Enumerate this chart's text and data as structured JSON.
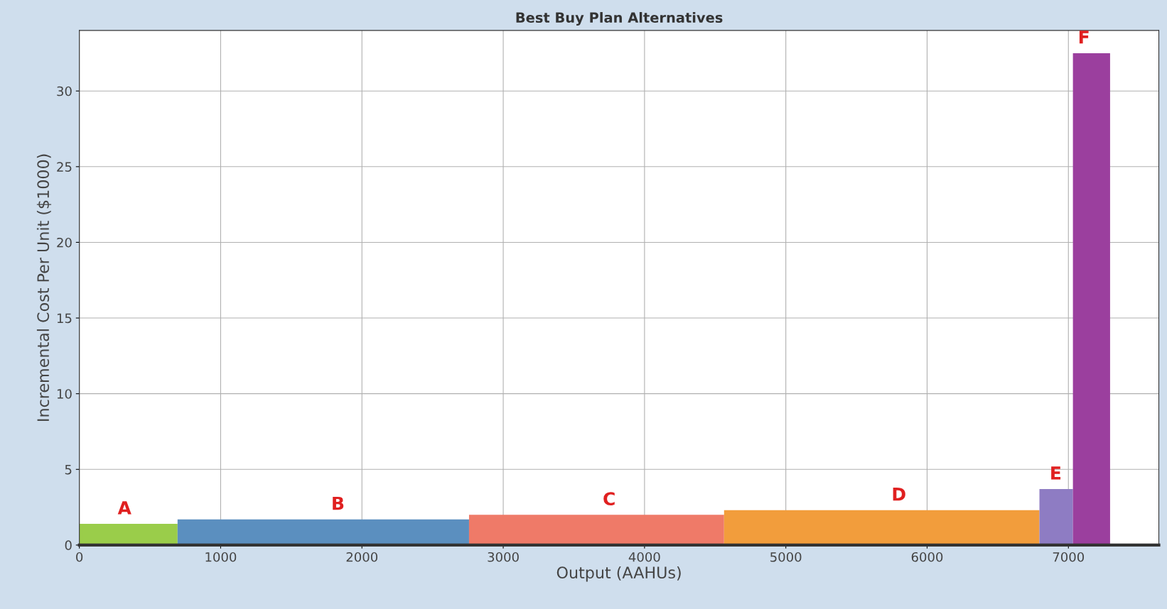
{
  "chart_data": {
    "type": "area",
    "title": "Best Buy Plan Alternatives",
    "xlabel": "Output (AAHUs)",
    "ylabel": "Incremental Cost Per Unit ($1000)",
    "series": [
      {
        "x": [
          0,
          695
        ],
        "values": [
          1.4,
          1.4
        ],
        "color": "#9acd4a"
      },
      {
        "x": [
          695,
          2758
        ],
        "values": [
          1.7,
          1.7
        ],
        "color": "#5b8fbf"
      },
      {
        "x": [
          2758,
          4563
        ],
        "values": [
          2.0,
          2.0
        ],
        "color": "#ef7a68"
      },
      {
        "x": [
          4563,
          6795
        ],
        "values": [
          2.3,
          2.3
        ],
        "color": "#f29d3c"
      },
      {
        "x": [
          6795,
          7032
        ],
        "values": [
          3.7,
          3.7
        ],
        "color": "#8e7cc3"
      },
      {
        "x": [
          7032,
          7295
        ],
        "values": [
          32.5,
          32.5
        ],
        "color": "#9b3f9e"
      }
    ],
    "annotations": [
      {
        "text": "A",
        "x": 320,
        "y": 1.4
      },
      {
        "text": "B",
        "x": 1830,
        "y": 1.7
      },
      {
        "text": "C",
        "x": 3750,
        "y": 2.0
      },
      {
        "text": "D",
        "x": 5800,
        "y": 2.3
      },
      {
        "text": "E",
        "x": 6910,
        "y": 3.7
      },
      {
        "text": "F",
        "x": 7110,
        "y": 32.5
      }
    ],
    "xlim": [
      0,
      7640
    ],
    "ylim": [
      0,
      34
    ],
    "xticks": [
      0,
      1000,
      2000,
      3000,
      4000,
      5000,
      6000,
      7000
    ],
    "yticks": [
      0,
      5,
      10,
      15,
      20,
      25,
      30
    ],
    "grid": true
  }
}
